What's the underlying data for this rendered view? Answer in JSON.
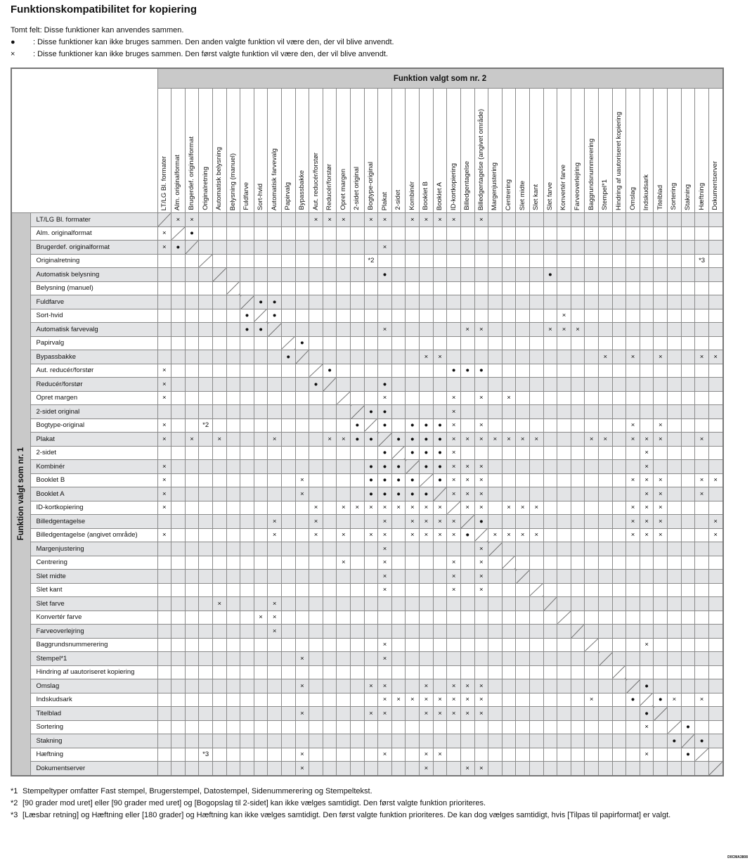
{
  "title": "Funktionskompatibilitet for kopiering",
  "legend": {
    "empty": "Tomt felt: Disse funktioner kan anvendes sammen.",
    "items": [
      {
        "symbol": "●",
        "text": ": Disse funktioner kan ikke bruges sammen. Den anden valgte funktion vil være den, der vil blive anvendt."
      },
      {
        "symbol": "×",
        "text": ": Disse funktioner kan ikke bruges sammen. Den først valgte funktion vil være den, der vil blive anvendt."
      }
    ]
  },
  "matrix": {
    "column_group_label": "Funktion valgt som nr. 2",
    "row_group_label": "Funktion valgt som nr. 1",
    "columns": [
      "LT/LG Bl. formater",
      "Alm. originalformat",
      "Brugerdef. originalformat",
      "Originalretning",
      "Automatisk belysning",
      "Belysning (manuel)",
      "Fuldfarve",
      "Sort-hvid",
      "Automatisk farvevalg",
      "Papirvalg",
      "Bypassbakke",
      "Aut. reducér/forstør",
      "Reducér/forstør",
      "Opret margen",
      "2-sidet original",
      "Bogtype-original",
      "Plakat",
      "2-sidet",
      "Kombinér",
      "Booklet B",
      "Booklet A",
      "ID-kortkopiering",
      "Billedgentagelse",
      "Billedgentagelse (angivet område)",
      "Margenjustering",
      "Centrering",
      "Slet midte",
      "Slet kant",
      "Slet farve",
      "Konvertér farve",
      "Farveoverlejring",
      "Baggrundsnummerering",
      "Stempel*1",
      "Hindring af uautoriseret kopiering",
      "Omslag",
      "Indskudsark",
      "Titelblad",
      "Sortering",
      "Stakning",
      "Hæftning",
      "Dokumentserver"
    ],
    "rows": [
      {
        "label": "LT/LG Bl. formater",
        "cells": {
          "1": "×",
          "2": "×",
          "11": "×",
          "12": "×",
          "13": "×",
          "15": "×",
          "16": "×",
          "18": "×",
          "19": "×",
          "20": "×",
          "21": "×",
          "23": "×"
        }
      },
      {
        "label": "Alm. originalformat",
        "cells": {
          "0": "×",
          "2": "●"
        }
      },
      {
        "label": "Brugerdef. originalformat",
        "cells": {
          "0": "×",
          "1": "●",
          "16": "×"
        }
      },
      {
        "label": "Originalretning",
        "cells": {
          "15": "*2",
          "39": "*3"
        }
      },
      {
        "label": "Automatisk belysning",
        "cells": {
          "16": "●",
          "28": "●"
        }
      },
      {
        "label": "Belysning (manuel)",
        "cells": {}
      },
      {
        "label": "Fuldfarve",
        "cells": {
          "7": "●",
          "8": "●"
        }
      },
      {
        "label": "Sort-hvid",
        "cells": {
          "6": "●",
          "8": "●",
          "29": "×"
        }
      },
      {
        "label": "Automatisk farvevalg",
        "cells": {
          "6": "●",
          "7": "●",
          "16": "×",
          "22": "×",
          "23": "×",
          "28": "×",
          "29": "×",
          "30": "×"
        }
      },
      {
        "label": "Papirvalg",
        "cells": {
          "10": "●"
        }
      },
      {
        "label": "Bypassbakke",
        "cells": {
          "9": "●",
          "19": "×",
          "20": "×",
          "32": "×",
          "34": "×",
          "36": "×",
          "39": "×",
          "40": "×"
        }
      },
      {
        "label": "Aut. reducér/forstør",
        "cells": {
          "0": "×",
          "12": "●",
          "21": "●",
          "22": "●",
          "23": "●"
        }
      },
      {
        "label": "Reducér/forstør",
        "cells": {
          "0": "×",
          "11": "●",
          "16": "●"
        }
      },
      {
        "label": "Opret margen",
        "cells": {
          "0": "×",
          "16": "×",
          "21": "×",
          "23": "×",
          "25": "×"
        }
      },
      {
        "label": "2-sidet original",
        "cells": {
          "15": "●",
          "16": "●",
          "21": "×"
        }
      },
      {
        "label": "Bogtype-original",
        "cells": {
          "0": "×",
          "3": "*2",
          "14": "●",
          "16": "●",
          "18": "●",
          "19": "●",
          "20": "●",
          "21": "×",
          "23": "×",
          "34": "×",
          "36": "×"
        }
      },
      {
        "label": "Plakat",
        "cells": {
          "0": "×",
          "2": "×",
          "4": "×",
          "8": "×",
          "12": "×",
          "13": "×",
          "14": "●",
          "15": "●",
          "17": "●",
          "18": "●",
          "19": "●",
          "20": "●",
          "21": "×",
          "22": "×",
          "23": "×",
          "24": "×",
          "25": "×",
          "26": "×",
          "27": "×",
          "31": "×",
          "32": "×",
          "34": "×",
          "35": "×",
          "36": "×",
          "39": "×"
        }
      },
      {
        "label": "2-sidet",
        "cells": {
          "16": "●",
          "18": "●",
          "19": "●",
          "20": "●",
          "21": "×",
          "35": "×"
        }
      },
      {
        "label": "Kombinér",
        "cells": {
          "0": "×",
          "15": "●",
          "16": "●",
          "17": "●",
          "19": "●",
          "20": "●",
          "21": "×",
          "22": "×",
          "23": "×",
          "35": "×"
        }
      },
      {
        "label": "Booklet B",
        "cells": {
          "0": "×",
          "10": "×",
          "15": "●",
          "16": "●",
          "17": "●",
          "18": "●",
          "20": "●",
          "21": "×",
          "22": "×",
          "23": "×",
          "34": "×",
          "35": "×",
          "36": "×",
          "39": "×",
          "40": "×"
        }
      },
      {
        "label": "Booklet A",
        "cells": {
          "0": "×",
          "10": "×",
          "15": "●",
          "16": "●",
          "17": "●",
          "18": "●",
          "19": "●",
          "21": "×",
          "22": "×",
          "23": "×",
          "35": "×",
          "36": "×",
          "39": "×"
        }
      },
      {
        "label": "ID-kortkopiering",
        "cells": {
          "0": "×",
          "11": "×",
          "13": "×",
          "14": "×",
          "15": "×",
          "16": "×",
          "17": "×",
          "18": "×",
          "19": "×",
          "20": "×",
          "22": "×",
          "23": "×",
          "25": "×",
          "26": "×",
          "27": "×",
          "34": "×",
          "35": "×",
          "36": "×"
        }
      },
      {
        "label": "Billedgentagelse",
        "cells": {
          "8": "×",
          "11": "×",
          "16": "×",
          "18": "×",
          "19": "×",
          "20": "×",
          "21": "×",
          "23": "●",
          "34": "×",
          "35": "×",
          "36": "×",
          "40": "×"
        }
      },
      {
        "label": "Billedgentagelse (angivet område)",
        "cells": {
          "0": "×",
          "8": "×",
          "11": "×",
          "13": "×",
          "15": "×",
          "16": "×",
          "18": "×",
          "19": "×",
          "20": "×",
          "21": "×",
          "22": "●",
          "24": "×",
          "25": "×",
          "26": "×",
          "27": "×",
          "34": "×",
          "35": "×",
          "36": "×",
          "40": "×"
        }
      },
      {
        "label": "Margenjustering",
        "cells": {
          "16": "×",
          "23": "×"
        }
      },
      {
        "label": "Centrering",
        "cells": {
          "13": "×",
          "16": "×",
          "21": "×",
          "23": "×"
        }
      },
      {
        "label": "Slet midte",
        "cells": {
          "16": "×",
          "21": "×",
          "23": "×"
        }
      },
      {
        "label": "Slet kant",
        "cells": {
          "16": "×",
          "21": "×",
          "23": "×"
        }
      },
      {
        "label": "Slet farve",
        "cells": {
          "4": "×",
          "8": "×"
        }
      },
      {
        "label": "Konvertér farve",
        "cells": {
          "7": "×",
          "8": "×"
        }
      },
      {
        "label": "Farveoverlejring",
        "cells": {
          "8": "×"
        }
      },
      {
        "label": "Baggrundsnummerering",
        "cells": {
          "16": "×",
          "35": "×"
        }
      },
      {
        "label": "Stempel*1",
        "cells": {
          "10": "×",
          "16": "×"
        }
      },
      {
        "label": "Hindring af uautoriseret kopiering",
        "cells": {}
      },
      {
        "label": "Omslag",
        "cells": {
          "10": "×",
          "15": "×",
          "16": "×",
          "19": "×",
          "21": "×",
          "22": "×",
          "23": "×",
          "35": "●"
        }
      },
      {
        "label": "Indskudsark",
        "cells": {
          "16": "×",
          "17": "×",
          "18": "×",
          "19": "×",
          "20": "×",
          "21": "×",
          "22": "×",
          "23": "×",
          "31": "×",
          "34": "●",
          "36": "●",
          "37": "×",
          "39": "×"
        }
      },
      {
        "label": "Titelblad",
        "cells": {
          "10": "×",
          "15": "×",
          "16": "×",
          "19": "×",
          "20": "×",
          "21": "×",
          "22": "×",
          "23": "×",
          "35": "●"
        }
      },
      {
        "label": "Sortering",
        "cells": {
          "35": "×",
          "38": "●"
        }
      },
      {
        "label": "Stakning",
        "cells": {
          "37": "●",
          "39": "●"
        }
      },
      {
        "label": "Hæftning",
        "cells": {
          "3": "*3",
          "10": "×",
          "16": "×",
          "19": "×",
          "20": "×",
          "35": "×",
          "38": "●"
        }
      },
      {
        "label": "Dokumentserver",
        "cells": {
          "10": "×",
          "19": "×",
          "22": "×",
          "23": "×"
        }
      }
    ]
  },
  "notes": [
    {
      "key": "*1",
      "text": "Stempeltyper omfatter Fast stempel, Brugerstempel, Datostempel, Sidenummerering og Stempeltekst."
    },
    {
      "key": "*2",
      "text": "[90 grader mod uret] eller [90 grader med uret] og [Bogopslag til 2-sidet] kan ikke vælges samtidigt. Den først valgte funktion prioriteres."
    },
    {
      "key": "*3",
      "text": "[Læsbar retning] og Hæftning eller [180 grader] og Hæftning kan ikke vælges samtidigt. Den først valgte funktion prioriteres. De kan dog vælges samtidigt, hvis [Tilpas til papirformat] er valgt."
    }
  ],
  "figure_code": "D0CMA3808"
}
